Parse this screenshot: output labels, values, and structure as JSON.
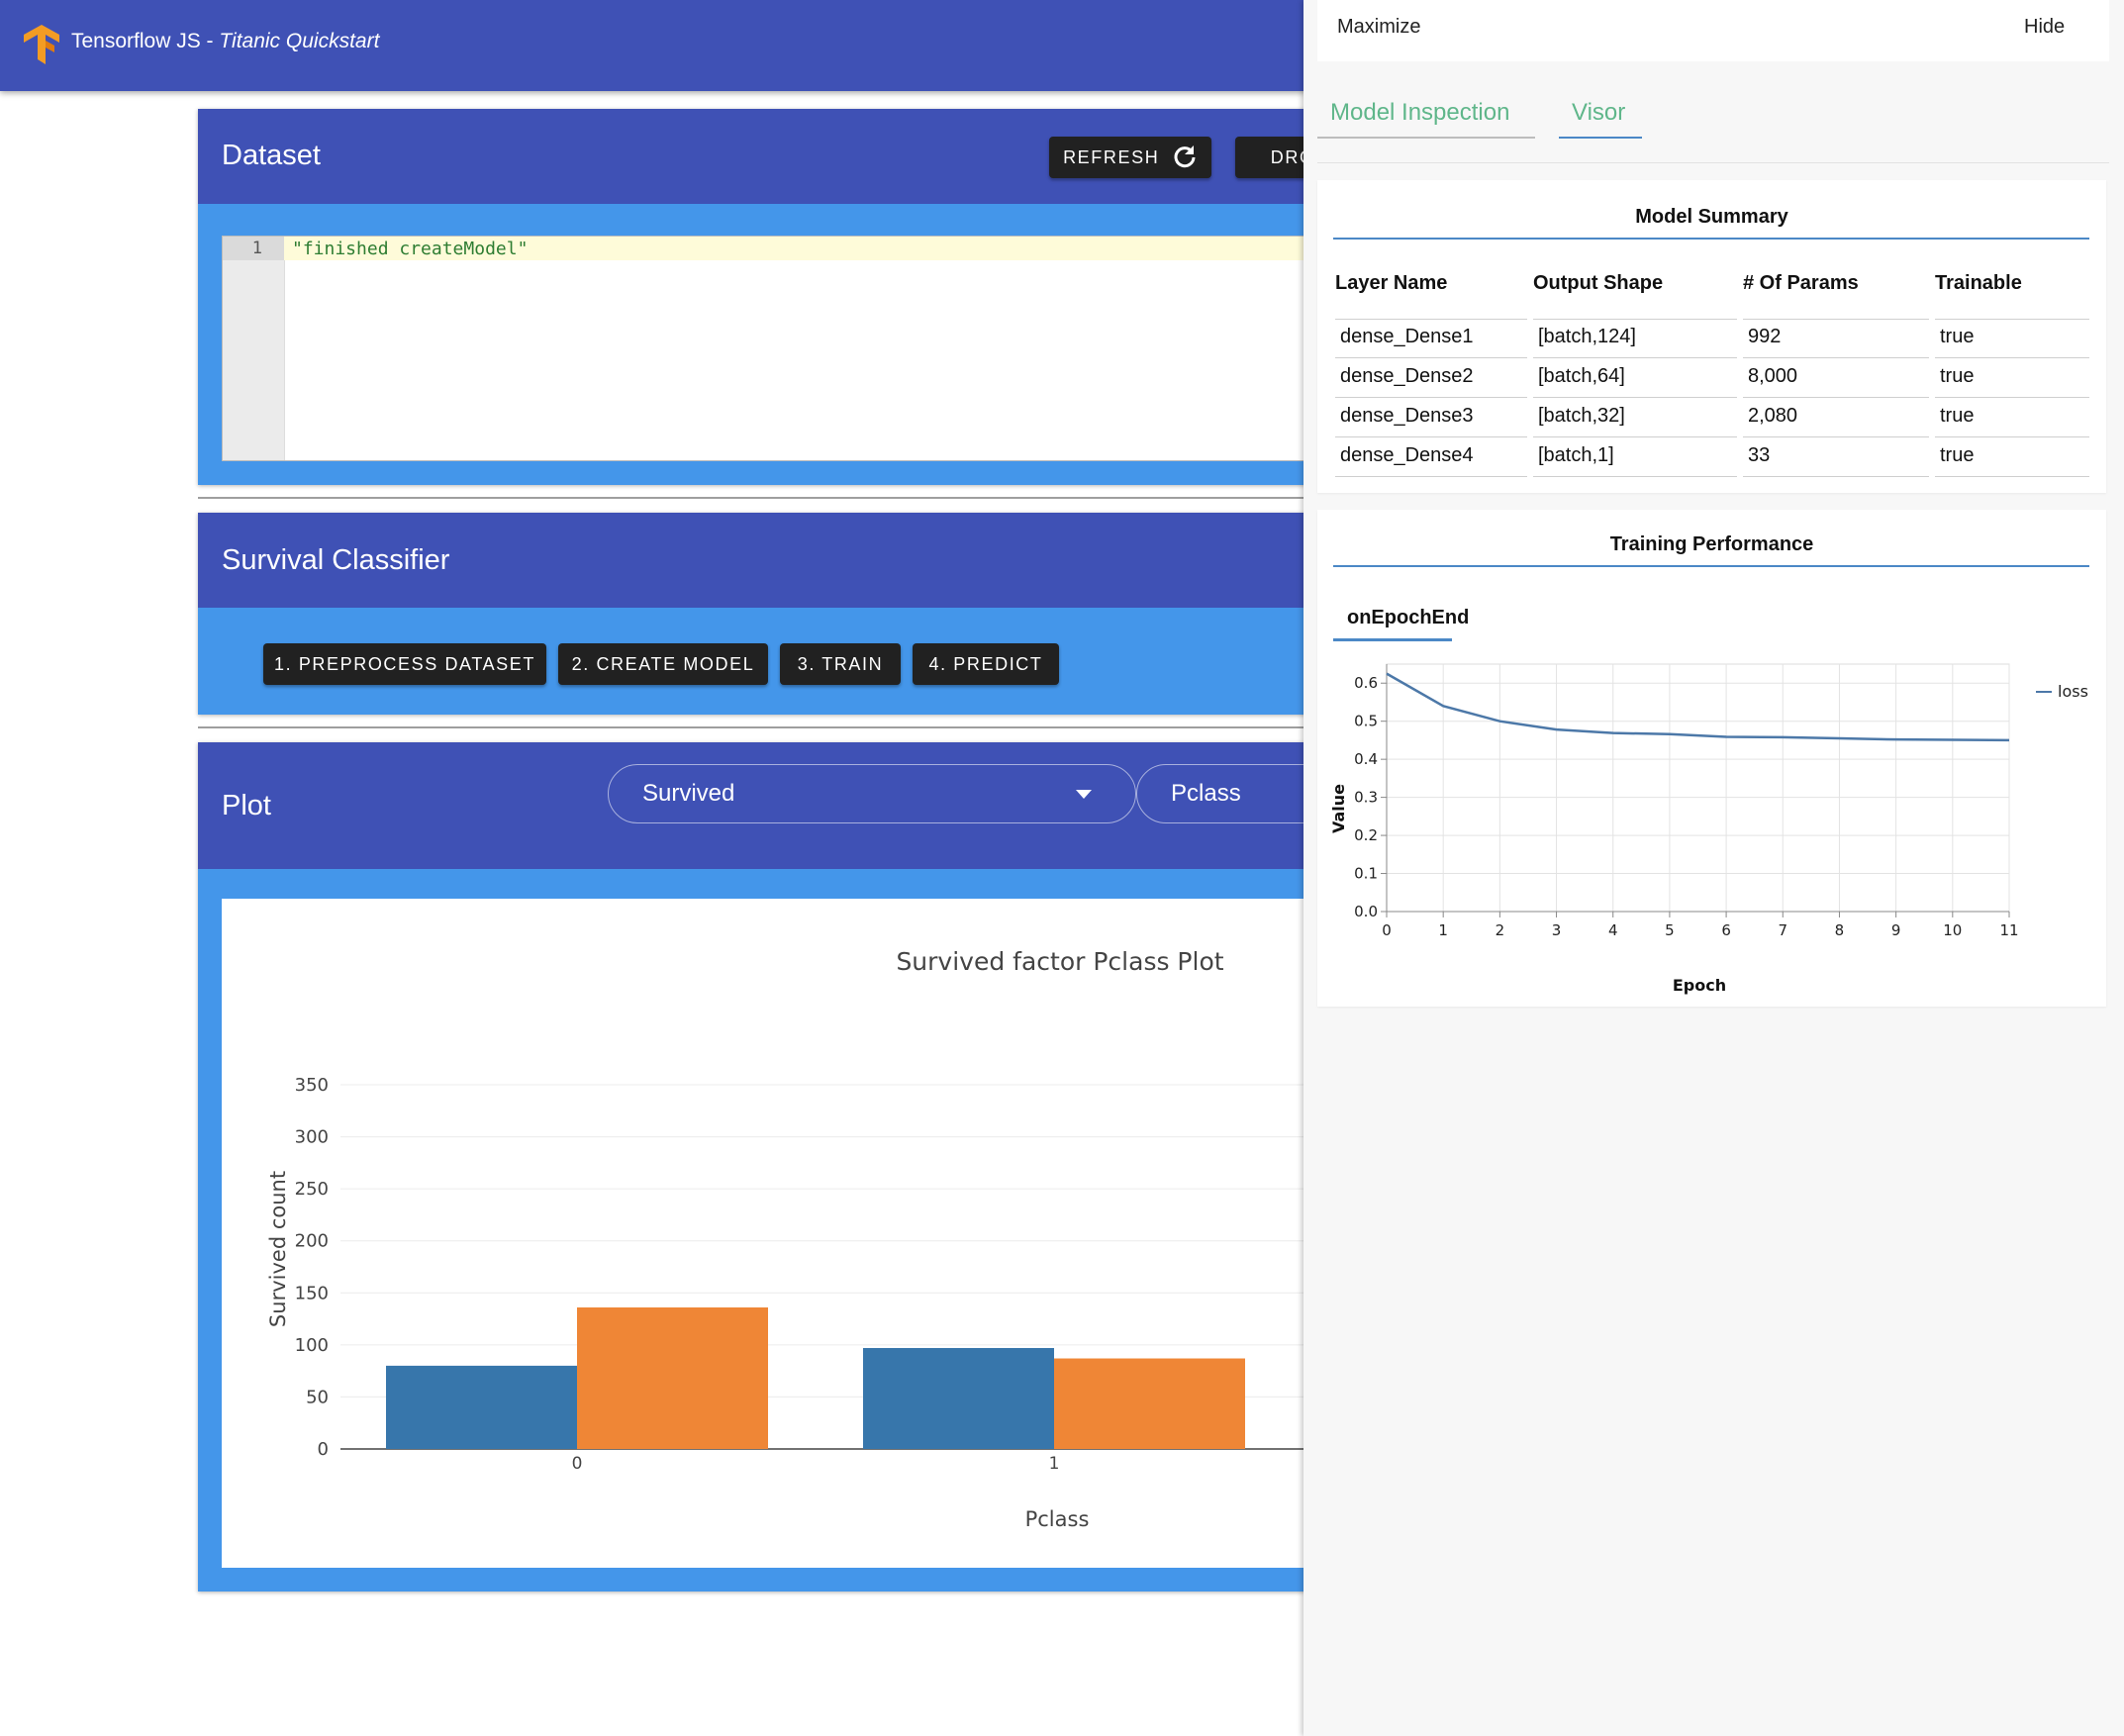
{
  "header": {
    "title_prefix": "Tensorflow JS - ",
    "title_italic": "Titanic Quickstart",
    "logo_color": "#f39c24"
  },
  "dataset": {
    "title": "Dataset",
    "refresh_label": "REFRESH",
    "drop_label": "DROP",
    "line_number": "1",
    "code": "\"finished createModel\""
  },
  "classifier": {
    "title": "Survival Classifier",
    "buttons": [
      "1. PREPROCESS DATASET",
      "2. CREATE MODEL",
      "3. TRAIN",
      "4. PREDICT"
    ]
  },
  "plot": {
    "title": "Plot",
    "select_y": "Survived",
    "select_x": "Pclass"
  },
  "chart_data": [
    {
      "type": "bar",
      "title": "Survived factor Pclass Plot",
      "xlabel": "Pclass",
      "ylabel": "Survived count",
      "categories": [
        "0",
        "1"
      ],
      "ylim": [
        0,
        350
      ],
      "yticks": [
        0,
        50,
        100,
        150,
        200,
        250,
        300,
        350
      ],
      "series": [
        {
          "values": [
            80,
            97
          ],
          "color": "#3776ab"
        },
        {
          "values": [
            136,
            87
          ],
          "color": "#ef8636"
        }
      ],
      "grid": true
    },
    {
      "type": "line",
      "title": "onEpochEnd",
      "xlabel": "Epoch",
      "ylabel": "Value",
      "x": [
        0,
        1,
        2,
        3,
        4,
        5,
        6,
        7,
        8,
        9,
        10,
        11
      ],
      "xlim": [
        0,
        11
      ],
      "ylim": [
        0,
        0.65
      ],
      "yticks": [
        0.0,
        0.1,
        0.2,
        0.3,
        0.4,
        0.5,
        0.6
      ],
      "ytick_labels": [
        "0.0",
        "0.1",
        "0.2",
        "0.3",
        "0.4",
        "0.5",
        "0.6"
      ],
      "series": [
        {
          "name": "loss",
          "values": [
            0.625,
            0.54,
            0.5,
            0.478,
            0.469,
            0.466,
            0.459,
            0.458,
            0.455,
            0.452,
            0.451,
            0.45
          ],
          "color": "#4c78a8"
        }
      ],
      "grid": true,
      "legend": "top-right"
    }
  ],
  "visor": {
    "maximize_label": "Maximize",
    "hide_label": "Hide",
    "tabs": [
      "Model Inspection",
      "Visor"
    ],
    "model_summary": {
      "title": "Model Summary",
      "columns": [
        "Layer Name",
        "Output Shape",
        "# Of Params",
        "Trainable"
      ],
      "rows": [
        [
          "dense_Dense1",
          "[batch,124]",
          "992",
          "true"
        ],
        [
          "dense_Dense2",
          "[batch,64]",
          "8,000",
          "true"
        ],
        [
          "dense_Dense3",
          "[batch,32]",
          "2,080",
          "true"
        ],
        [
          "dense_Dense4",
          "[batch,1]",
          "33",
          "true"
        ]
      ]
    },
    "training": {
      "title": "Training Performance",
      "subtab": "onEpochEnd"
    }
  },
  "colors": {
    "primary": "#3f51b5",
    "card_body": "#4496ea",
    "tab_green": "#5fb68a",
    "rule_blue": "#4b88c6"
  }
}
